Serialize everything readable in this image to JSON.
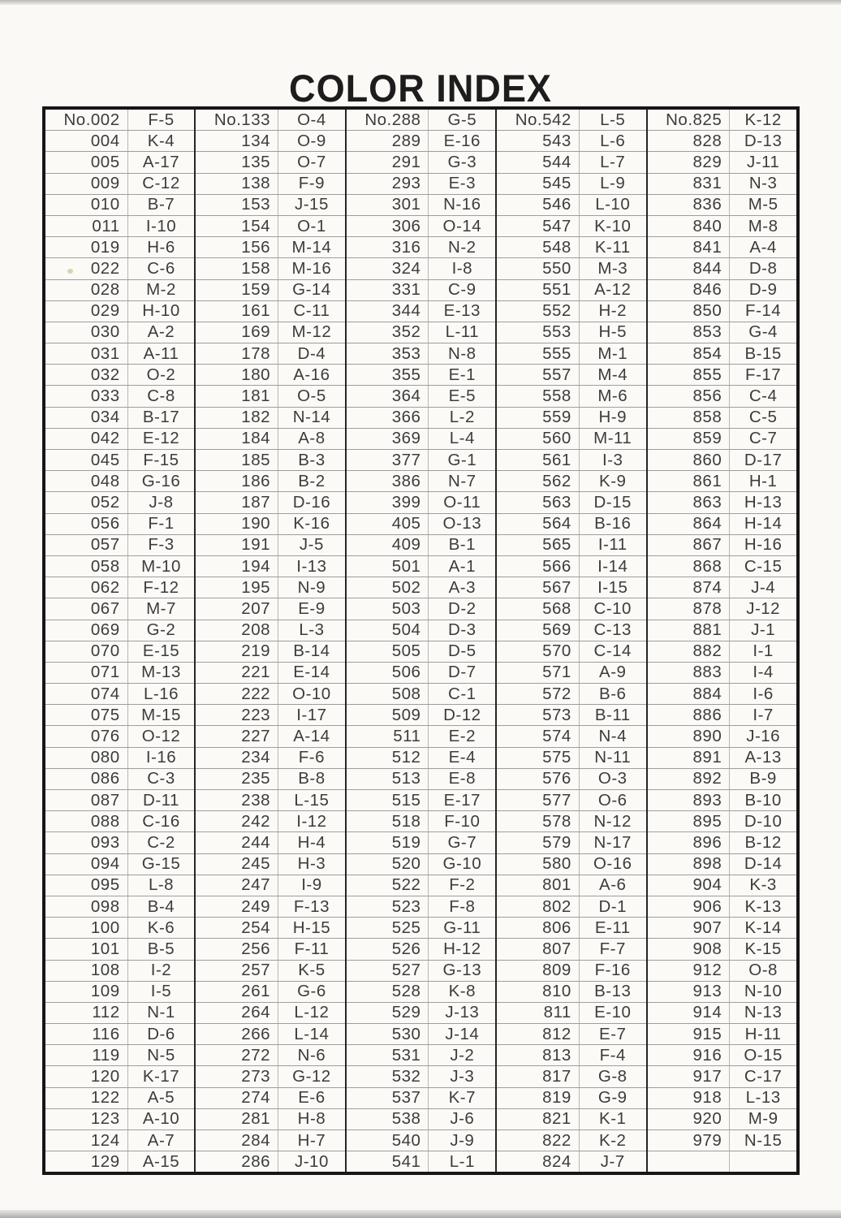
{
  "page": {
    "title": "COLOR INDEX"
  },
  "table": {
    "columns": [
      {
        "rows": [
          [
            "No.002",
            "F-5"
          ],
          [
            "004",
            "K-4"
          ],
          [
            "005",
            "A-17"
          ],
          [
            "009",
            "C-12"
          ],
          [
            "010",
            "B-7"
          ],
          [
            "011",
            "I-10"
          ],
          [
            "019",
            "H-6"
          ],
          [
            "022",
            "C-6"
          ],
          [
            "028",
            "M-2"
          ],
          [
            "029",
            "H-10"
          ],
          [
            "030",
            "A-2"
          ],
          [
            "031",
            "A-11"
          ],
          [
            "032",
            "O-2"
          ],
          [
            "033",
            "C-8"
          ],
          [
            "034",
            "B-17"
          ],
          [
            "042",
            "E-12"
          ],
          [
            "045",
            "F-15"
          ],
          [
            "048",
            "G-16"
          ],
          [
            "052",
            "J-8"
          ],
          [
            "056",
            "F-1"
          ],
          [
            "057",
            "F-3"
          ],
          [
            "058",
            "M-10"
          ],
          [
            "062",
            "F-12"
          ],
          [
            "067",
            "M-7"
          ],
          [
            "069",
            "G-2"
          ],
          [
            "070",
            "E-15"
          ],
          [
            "071",
            "M-13"
          ],
          [
            "074",
            "L-16"
          ],
          [
            "075",
            "M-15"
          ],
          [
            "076",
            "O-12"
          ],
          [
            "080",
            "I-16"
          ],
          [
            "086",
            "C-3"
          ],
          [
            "087",
            "D-11"
          ],
          [
            "088",
            "C-16"
          ],
          [
            "093",
            "C-2"
          ],
          [
            "094",
            "G-15"
          ],
          [
            "095",
            "L-8"
          ],
          [
            "098",
            "B-4"
          ],
          [
            "100",
            "K-6"
          ],
          [
            "101",
            "B-5"
          ],
          [
            "108",
            "I-2"
          ],
          [
            "109",
            "I-5"
          ],
          [
            "112",
            "N-1"
          ],
          [
            "116",
            "D-6"
          ],
          [
            "119",
            "N-5"
          ],
          [
            "120",
            "K-17"
          ],
          [
            "122",
            "A-5"
          ],
          [
            "123",
            "A-10"
          ],
          [
            "124",
            "A-7"
          ],
          [
            "129",
            "A-15"
          ]
        ]
      },
      {
        "rows": [
          [
            "No.133",
            "O-4"
          ],
          [
            "134",
            "O-9"
          ],
          [
            "135",
            "O-7"
          ],
          [
            "138",
            "F-9"
          ],
          [
            "153",
            "J-15"
          ],
          [
            "154",
            "O-1"
          ],
          [
            "156",
            "M-14"
          ],
          [
            "158",
            "M-16"
          ],
          [
            "159",
            "G-14"
          ],
          [
            "161",
            "C-11"
          ],
          [
            "169",
            "M-12"
          ],
          [
            "178",
            "D-4"
          ],
          [
            "180",
            "A-16"
          ],
          [
            "181",
            "O-5"
          ],
          [
            "182",
            "N-14"
          ],
          [
            "184",
            "A-8"
          ],
          [
            "185",
            "B-3"
          ],
          [
            "186",
            "B-2"
          ],
          [
            "187",
            "D-16"
          ],
          [
            "190",
            "K-16"
          ],
          [
            "191",
            "J-5"
          ],
          [
            "194",
            "I-13"
          ],
          [
            "195",
            "N-9"
          ],
          [
            "207",
            "E-9"
          ],
          [
            "208",
            "L-3"
          ],
          [
            "219",
            "B-14"
          ],
          [
            "221",
            "E-14"
          ],
          [
            "222",
            "O-10"
          ],
          [
            "223",
            "I-17"
          ],
          [
            "227",
            "A-14"
          ],
          [
            "234",
            "F-6"
          ],
          [
            "235",
            "B-8"
          ],
          [
            "238",
            "L-15"
          ],
          [
            "242",
            "I-12"
          ],
          [
            "244",
            "H-4"
          ],
          [
            "245",
            "H-3"
          ],
          [
            "247",
            "I-9"
          ],
          [
            "249",
            "F-13"
          ],
          [
            "254",
            "H-15"
          ],
          [
            "256",
            "F-11"
          ],
          [
            "257",
            "K-5"
          ],
          [
            "261",
            "G-6"
          ],
          [
            "264",
            "L-12"
          ],
          [
            "266",
            "L-14"
          ],
          [
            "272",
            "N-6"
          ],
          [
            "273",
            "G-12"
          ],
          [
            "274",
            "E-6"
          ],
          [
            "281",
            "H-8"
          ],
          [
            "284",
            "H-7"
          ],
          [
            "286",
            "J-10"
          ]
        ]
      },
      {
        "rows": [
          [
            "No.288",
            "G-5"
          ],
          [
            "289",
            "E-16"
          ],
          [
            "291",
            "G-3"
          ],
          [
            "293",
            "E-3"
          ],
          [
            "301",
            "N-16"
          ],
          [
            "306",
            "O-14"
          ],
          [
            "316",
            "N-2"
          ],
          [
            "324",
            "I-8"
          ],
          [
            "331",
            "C-9"
          ],
          [
            "344",
            "E-13"
          ],
          [
            "352",
            "L-11"
          ],
          [
            "353",
            "N-8"
          ],
          [
            "355",
            "E-1"
          ],
          [
            "364",
            "E-5"
          ],
          [
            "366",
            "L-2"
          ],
          [
            "369",
            "L-4"
          ],
          [
            "377",
            "G-1"
          ],
          [
            "386",
            "N-7"
          ],
          [
            "399",
            "O-11"
          ],
          [
            "405",
            "O-13"
          ],
          [
            "409",
            "B-1"
          ],
          [
            "501",
            "A-1"
          ],
          [
            "502",
            "A-3"
          ],
          [
            "503",
            "D-2"
          ],
          [
            "504",
            "D-3"
          ],
          [
            "505",
            "D-5"
          ],
          [
            "506",
            "D-7"
          ],
          [
            "508",
            "C-1"
          ],
          [
            "509",
            "D-12"
          ],
          [
            "511",
            "E-2"
          ],
          [
            "512",
            "E-4"
          ],
          [
            "513",
            "E-8"
          ],
          [
            "515",
            "E-17"
          ],
          [
            "518",
            "F-10"
          ],
          [
            "519",
            "G-7"
          ],
          [
            "520",
            "G-10"
          ],
          [
            "522",
            "F-2"
          ],
          [
            "523",
            "F-8"
          ],
          [
            "525",
            "G-11"
          ],
          [
            "526",
            "H-12"
          ],
          [
            "527",
            "G-13"
          ],
          [
            "528",
            "K-8"
          ],
          [
            "529",
            "J-13"
          ],
          [
            "530",
            "J-14"
          ],
          [
            "531",
            "J-2"
          ],
          [
            "532",
            "J-3"
          ],
          [
            "537",
            "K-7"
          ],
          [
            "538",
            "J-6"
          ],
          [
            "540",
            "J-9"
          ],
          [
            "541",
            "L-1"
          ]
        ]
      },
      {
        "rows": [
          [
            "No.542",
            "L-5"
          ],
          [
            "543",
            "L-6"
          ],
          [
            "544",
            "L-7"
          ],
          [
            "545",
            "L-9"
          ],
          [
            "546",
            "L-10"
          ],
          [
            "547",
            "K-10"
          ],
          [
            "548",
            "K-11"
          ],
          [
            "550",
            "M-3"
          ],
          [
            "551",
            "A-12"
          ],
          [
            "552",
            "H-2"
          ],
          [
            "553",
            "H-5"
          ],
          [
            "555",
            "M-1"
          ],
          [
            "557",
            "M-4"
          ],
          [
            "558",
            "M-6"
          ],
          [
            "559",
            "H-9"
          ],
          [
            "560",
            "M-11"
          ],
          [
            "561",
            "I-3"
          ],
          [
            "562",
            "K-9"
          ],
          [
            "563",
            "D-15"
          ],
          [
            "564",
            "B-16"
          ],
          [
            "565",
            "I-11"
          ],
          [
            "566",
            "I-14"
          ],
          [
            "567",
            "I-15"
          ],
          [
            "568",
            "C-10"
          ],
          [
            "569",
            "C-13"
          ],
          [
            "570",
            "C-14"
          ],
          [
            "571",
            "A-9"
          ],
          [
            "572",
            "B-6"
          ],
          [
            "573",
            "B-11"
          ],
          [
            "574",
            "N-4"
          ],
          [
            "575",
            "N-11"
          ],
          [
            "576",
            "O-3"
          ],
          [
            "577",
            "O-6"
          ],
          [
            "578",
            "N-12"
          ],
          [
            "579",
            "N-17"
          ],
          [
            "580",
            "O-16"
          ],
          [
            "801",
            "A-6"
          ],
          [
            "802",
            "D-1"
          ],
          [
            "806",
            "E-11"
          ],
          [
            "807",
            "F-7"
          ],
          [
            "809",
            "F-16"
          ],
          [
            "810",
            "B-13"
          ],
          [
            "811",
            "E-10"
          ],
          [
            "812",
            "E-7"
          ],
          [
            "813",
            "F-4"
          ],
          [
            "817",
            "G-8"
          ],
          [
            "819",
            "G-9"
          ],
          [
            "821",
            "K-1"
          ],
          [
            "822",
            "K-2"
          ],
          [
            "824",
            "J-7"
          ]
        ]
      },
      {
        "rows": [
          [
            "No.825",
            "K-12"
          ],
          [
            "828",
            "D-13"
          ],
          [
            "829",
            "J-11"
          ],
          [
            "831",
            "N-3"
          ],
          [
            "836",
            "M-5"
          ],
          [
            "840",
            "M-8"
          ],
          [
            "841",
            "A-4"
          ],
          [
            "844",
            "D-8"
          ],
          [
            "846",
            "D-9"
          ],
          [
            "850",
            "F-14"
          ],
          [
            "853",
            "G-4"
          ],
          [
            "854",
            "B-15"
          ],
          [
            "855",
            "F-17"
          ],
          [
            "856",
            "C-4"
          ],
          [
            "858",
            "C-5"
          ],
          [
            "859",
            "C-7"
          ],
          [
            "860",
            "D-17"
          ],
          [
            "861",
            "H-1"
          ],
          [
            "863",
            "H-13"
          ],
          [
            "864",
            "H-14"
          ],
          [
            "867",
            "H-16"
          ],
          [
            "868",
            "C-15"
          ],
          [
            "874",
            "J-4"
          ],
          [
            "878",
            "J-12"
          ],
          [
            "881",
            "J-1"
          ],
          [
            "882",
            "I-1"
          ],
          [
            "883",
            "I-4"
          ],
          [
            "884",
            "I-6"
          ],
          [
            "886",
            "I-7"
          ],
          [
            "890",
            "J-16"
          ],
          [
            "891",
            "A-13"
          ],
          [
            "892",
            "B-9"
          ],
          [
            "893",
            "B-10"
          ],
          [
            "895",
            "D-10"
          ],
          [
            "896",
            "B-12"
          ],
          [
            "898",
            "D-14"
          ],
          [
            "904",
            "K-3"
          ],
          [
            "906",
            "K-13"
          ],
          [
            "907",
            "K-14"
          ],
          [
            "908",
            "K-15"
          ],
          [
            "912",
            "O-8"
          ],
          [
            "913",
            "N-10"
          ],
          [
            "914",
            "N-13"
          ],
          [
            "915",
            "H-11"
          ],
          [
            "916",
            "O-15"
          ],
          [
            "917",
            "C-17"
          ],
          [
            "918",
            "L-13"
          ],
          [
            "920",
            "M-9"
          ],
          [
            "979",
            "N-15"
          ],
          [
            "",
            ""
          ]
        ]
      }
    ]
  }
}
